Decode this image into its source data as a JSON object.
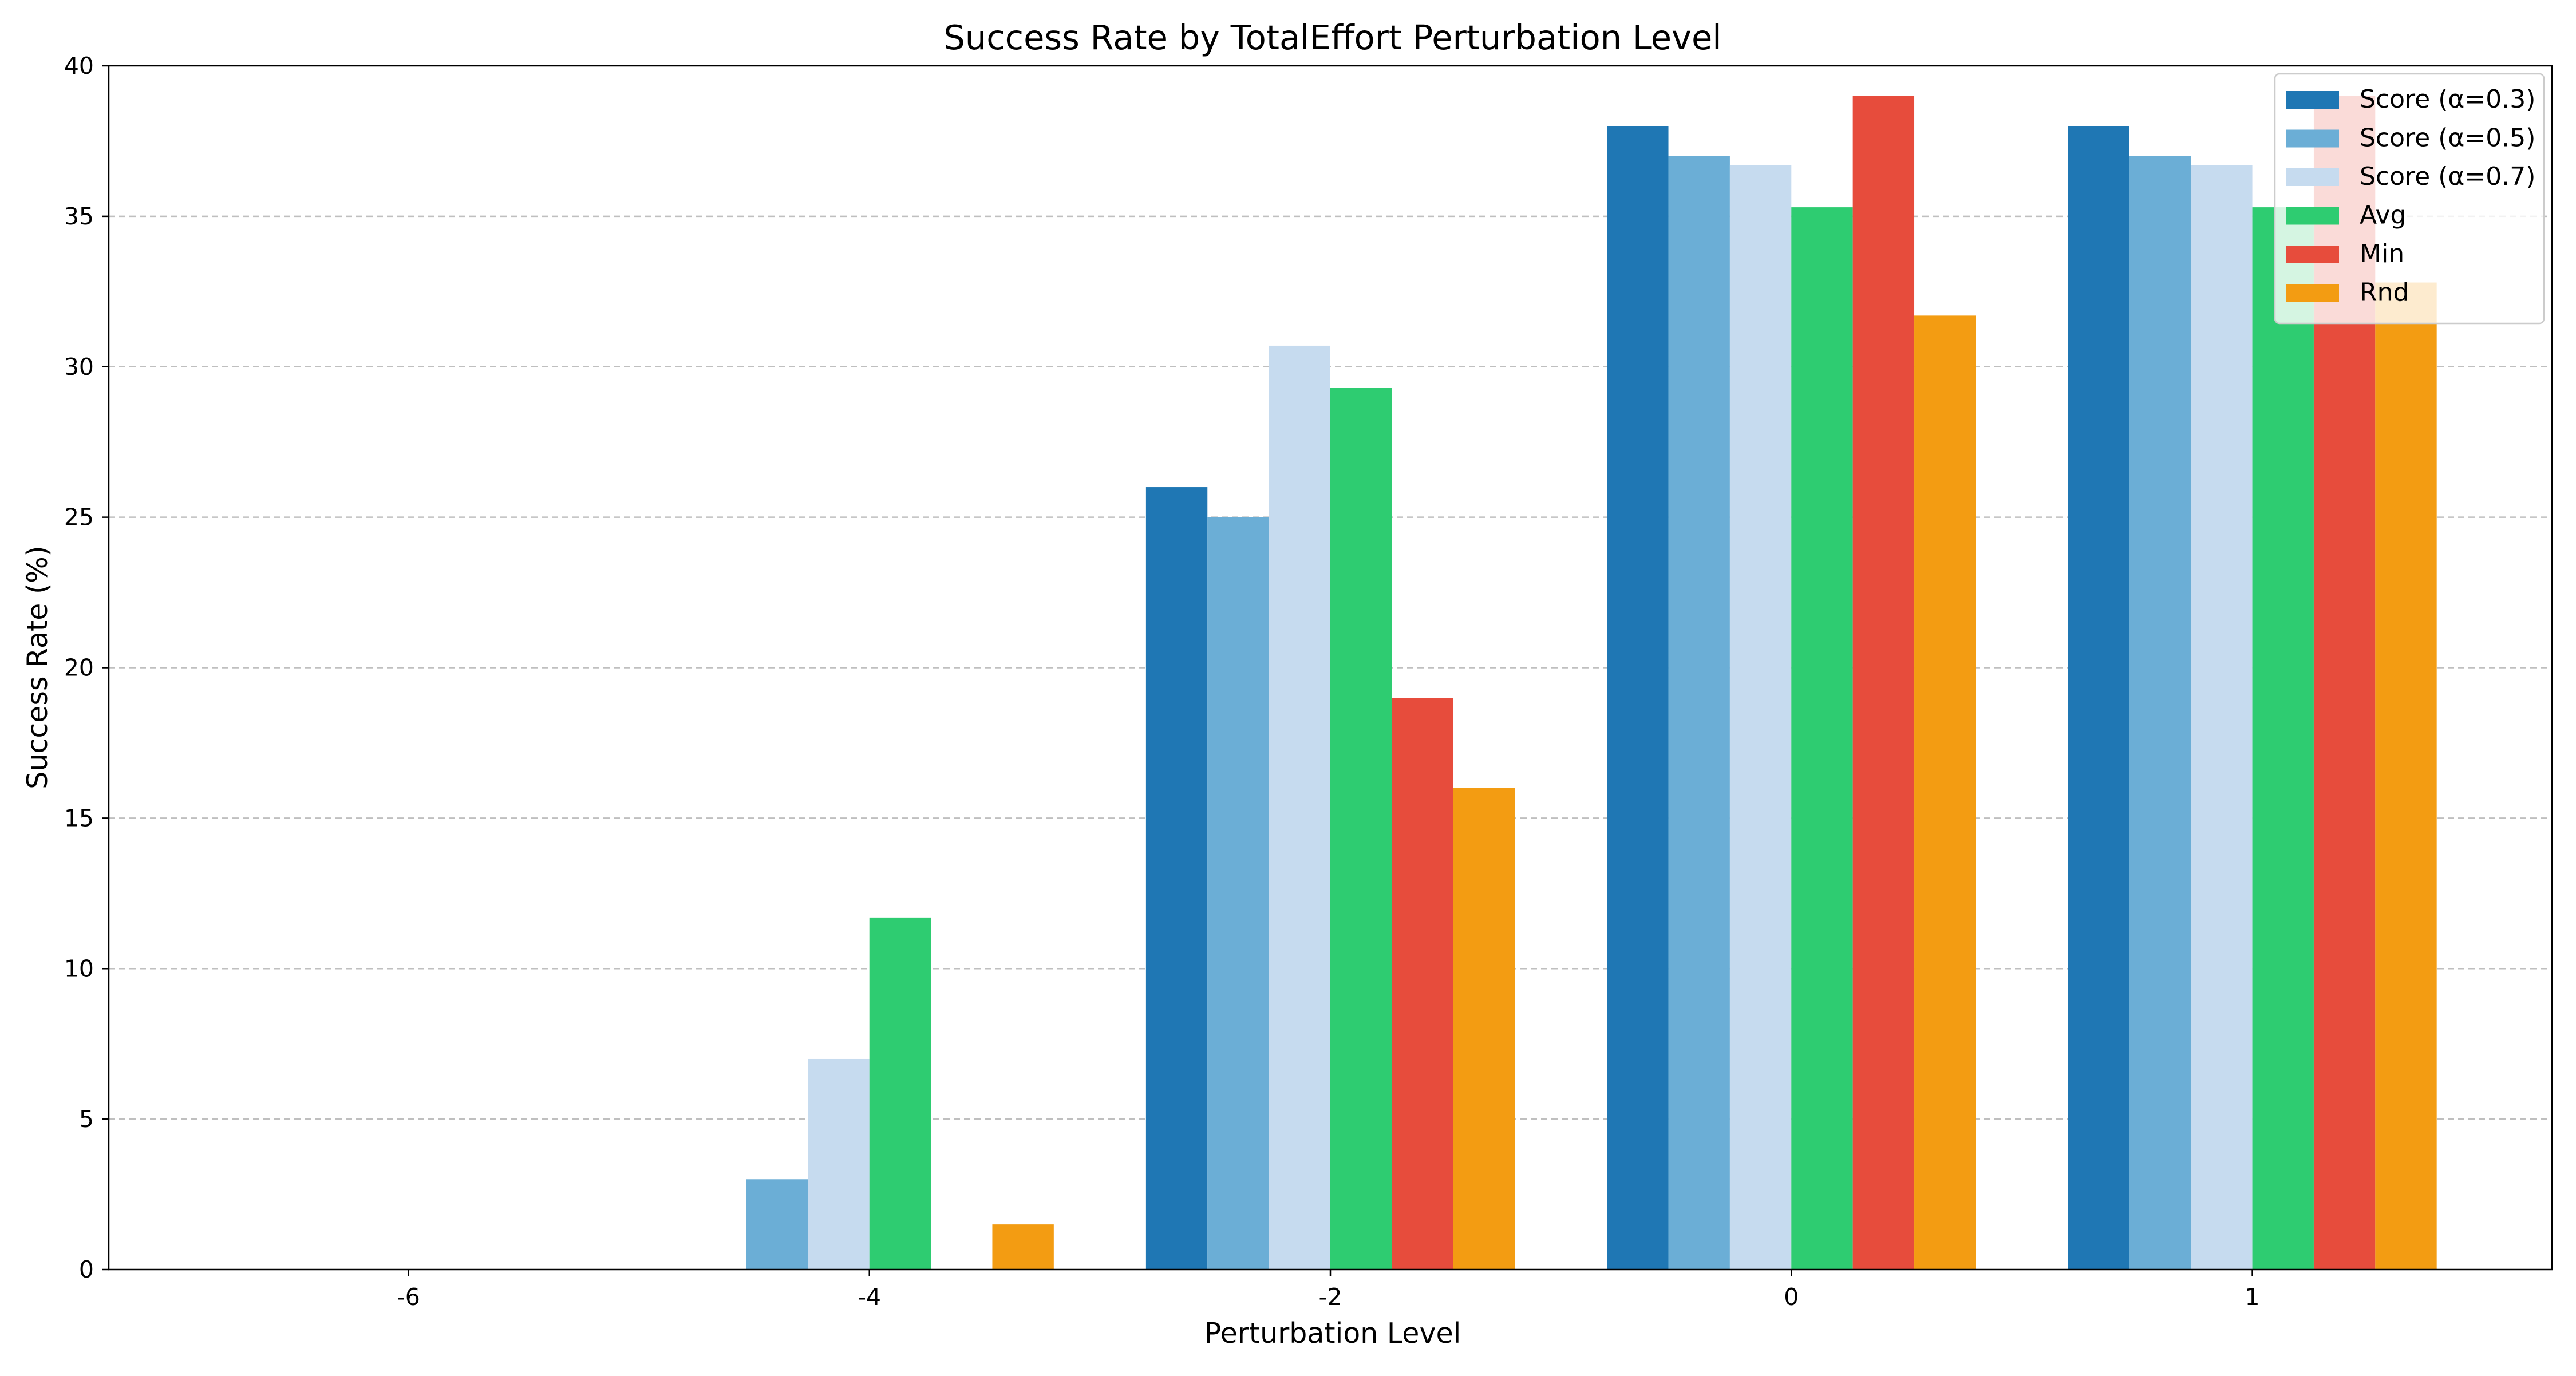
{
  "chart_data": {
    "type": "bar",
    "title": "Success Rate by TotalEffort Perturbation Level",
    "xlabel": "Perturbation Level",
    "ylabel": "Success Rate (%)",
    "categories": [
      "-6",
      "-4",
      "-2",
      "0",
      "1"
    ],
    "ylim": [
      0,
      40
    ],
    "yticks": [
      "0",
      "5",
      "10",
      "15",
      "20",
      "25",
      "30",
      "35",
      "40"
    ],
    "grid": "horizontal dashed",
    "legend_position": "top-right",
    "series": [
      {
        "name": "Score (α=0.3)",
        "color": "#1f77b4",
        "values": [
          0,
          0,
          26,
          38,
          38
        ]
      },
      {
        "name": "Score (α=0.5)",
        "color": "#6baed6",
        "values": [
          0,
          3,
          25,
          37,
          37
        ]
      },
      {
        "name": "Score (α=0.7)",
        "color": "#c6dbef",
        "values": [
          0,
          7,
          30.7,
          36.7,
          36.7
        ]
      },
      {
        "name": "Avg",
        "color": "#2ecc71",
        "values": [
          0,
          11.7,
          29.3,
          35.3,
          35.3
        ]
      },
      {
        "name": "Min",
        "color": "#e74c3c",
        "values": [
          0,
          0,
          19,
          39,
          39
        ]
      },
      {
        "name": "Rnd",
        "color": "#f39c12",
        "values": [
          0,
          1.5,
          16,
          31.7,
          32.8
        ]
      }
    ]
  }
}
